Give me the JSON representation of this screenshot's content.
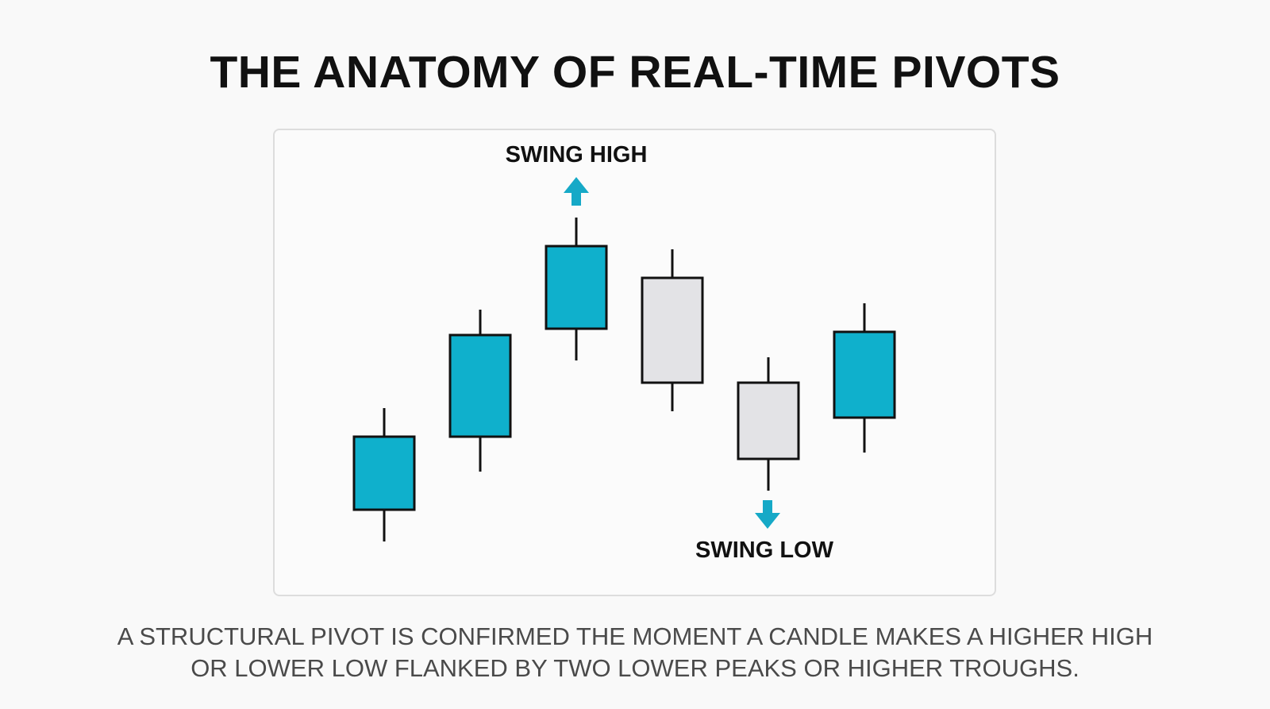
{
  "title": "THE ANATOMY OF REAL-TIME PIVOTS",
  "labels": {
    "swing_high": "SWING HIGH",
    "swing_low": "SWING LOW"
  },
  "caption": {
    "line1": "A STRUCTURAL PIVOT IS CONFIRMED THE MOMENT A CANDLE MAKES A HIGHER HIGH",
    "line2": "OR LOWER LOW FLANKED BY TWO LOWER PEAKS OR HIGHER TROUGHS."
  },
  "colors": {
    "bullish": "#0fb0cc",
    "bearish": "#e3e3e6",
    "outline": "#111111",
    "arrow": "#16a9c7",
    "panel_border": "#dddddd"
  },
  "chart_data": {
    "type": "candlestick",
    "candles": [
      {
        "direction": "up",
        "open": 5.1,
        "close": 7.4,
        "low": 4.1,
        "high": 8.3
      },
      {
        "direction": "up",
        "open": 7.4,
        "close": 10.6,
        "low": 6.3,
        "high": 11.4
      },
      {
        "direction": "up",
        "open": 10.8,
        "close": 13.4,
        "low": 9.8,
        "high": 14.3
      },
      {
        "direction": "down",
        "open": 12.4,
        "close": 9.1,
        "low": 8.2,
        "high": 13.3
      },
      {
        "direction": "down",
        "open": 9.1,
        "close": 6.7,
        "low": 5.7,
        "high": 9.9
      },
      {
        "direction": "up",
        "open": 8.0,
        "close": 10.7,
        "low": 6.9,
        "high": 11.6
      }
    ],
    "annotations": [
      {
        "candle_index": 2,
        "marker": "arrow-up",
        "text": "SWING HIGH"
      },
      {
        "candle_index": 4,
        "marker": "arrow-down",
        "text": "SWING LOW"
      }
    ]
  }
}
